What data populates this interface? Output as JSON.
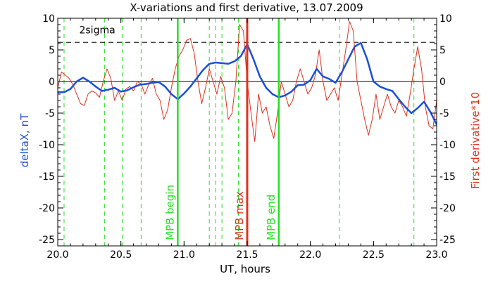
{
  "chart_data": {
    "type": "line",
    "title": "X-variations and first derivative, 13.07.2009",
    "xlabel": "UT, hours",
    "ylabel_left": "deltaX, nT",
    "ylabel_right": "First derivative*10",
    "xlim": [
      20.0,
      23.0
    ],
    "ylim": [
      -26,
      10
    ],
    "x_ticks": [
      "20.0",
      "20.5",
      "21.0",
      "21.5",
      "22.0",
      "22.5",
      "23.0"
    ],
    "y_ticks": [
      "10",
      "5",
      "0",
      "-5",
      "-10",
      "-15",
      "-20",
      "-25"
    ],
    "grid": false,
    "colors": {
      "deltaX": "#1a4fd6",
      "derivative": "#e0301e",
      "markers": "#22e022",
      "mpb_max": "#e0301e",
      "reference": "#000000"
    },
    "two_sigma": {
      "label": "2sigma",
      "value": 6.2
    },
    "zero_line": 0,
    "series": [
      {
        "name": "deltaX, nT",
        "axis": "left",
        "x": [
          20.0,
          20.05,
          20.1,
          20.15,
          20.2,
          20.25,
          20.3,
          20.35,
          20.4,
          20.45,
          20.5,
          20.55,
          20.6,
          20.65,
          20.7,
          20.75,
          20.8,
          20.85,
          20.9,
          20.95,
          21.0,
          21.05,
          21.1,
          21.15,
          21.2,
          21.25,
          21.3,
          21.35,
          21.4,
          21.45,
          21.5,
          21.55,
          21.6,
          21.65,
          21.7,
          21.75,
          21.8,
          21.85,
          21.9,
          21.95,
          22.0,
          22.05,
          22.1,
          22.15,
          22.2,
          22.25,
          22.3,
          22.35,
          22.4,
          22.45,
          22.5,
          22.55,
          22.6,
          22.65,
          22.7,
          22.75,
          22.8,
          22.85,
          22.9,
          22.95,
          23.0
        ],
        "y": [
          -1.7,
          -1.7,
          -1.2,
          0.0,
          0.6,
          0.0,
          -0.8,
          -1.5,
          -1.3,
          -1.0,
          -1.6,
          -1.4,
          -0.9,
          -0.5,
          -0.4,
          -0.2,
          -0.1,
          -0.8,
          -2.0,
          -2.8,
          -1.9,
          -0.8,
          0.5,
          1.8,
          2.8,
          3.0,
          2.9,
          2.8,
          3.2,
          4.0,
          5.9,
          3.5,
          0.8,
          -1.0,
          -2.0,
          -2.5,
          -2.2,
          -1.6,
          -0.6,
          -0.5,
          0.2,
          2.0,
          0.8,
          0.4,
          -0.2,
          1.5,
          3.5,
          5.5,
          6.1,
          3.5,
          0.0,
          -0.8,
          -1.2,
          -1.5,
          -2.8,
          -4.0,
          -5.0,
          -4.2,
          -3.2,
          -4.8,
          -6.8
        ]
      },
      {
        "name": "First derivative*10",
        "axis": "right",
        "x": [
          20.0,
          20.03,
          20.06,
          20.09,
          20.12,
          20.15,
          20.18,
          20.21,
          20.24,
          20.27,
          20.3,
          20.33,
          20.36,
          20.39,
          20.42,
          20.45,
          20.48,
          20.51,
          20.54,
          20.57,
          20.6,
          20.63,
          20.66,
          20.69,
          20.72,
          20.75,
          20.78,
          20.81,
          20.84,
          20.87,
          20.9,
          20.93,
          20.96,
          20.99,
          21.02,
          21.05,
          21.08,
          21.11,
          21.14,
          21.17,
          21.2,
          21.23,
          21.26,
          21.29,
          21.32,
          21.35,
          21.38,
          21.41,
          21.44,
          21.47,
          21.5,
          21.53,
          21.56,
          21.59,
          21.62,
          21.65,
          21.68,
          21.71,
          21.74,
          21.77,
          21.8,
          21.83,
          21.86,
          21.89,
          21.92,
          21.95,
          21.98,
          22.01,
          22.04,
          22.07,
          22.1,
          22.13,
          22.16,
          22.19,
          22.22,
          22.25,
          22.28,
          22.31,
          22.34,
          22.37,
          22.4,
          22.43,
          22.46,
          22.49,
          22.52,
          22.55,
          22.58,
          22.61,
          22.64,
          22.67,
          22.7,
          22.73,
          22.76,
          22.79,
          22.82,
          22.85,
          22.88,
          22.91,
          22.94,
          22.97,
          23.0
        ],
        "y": [
          -1.0,
          1.5,
          1.0,
          0.5,
          -0.5,
          -2.0,
          -3.5,
          -3.8,
          -2.0,
          -1.5,
          -1.8,
          -2.5,
          0.0,
          2.0,
          0.5,
          -3.0,
          -1.5,
          -3.0,
          -1.2,
          -0.8,
          -1.5,
          0.0,
          -0.4,
          -2.0,
          -0.5,
          0.5,
          -2.0,
          -3.0,
          -6.0,
          -4.5,
          -1.0,
          2.0,
          4.0,
          5.0,
          6.5,
          6.8,
          4.5,
          0.0,
          -3.5,
          -1.0,
          2.0,
          0.0,
          -2.0,
          0.8,
          -1.0,
          -6.0,
          -5.0,
          0.0,
          9.0,
          8.0,
          0.0,
          -5.0,
          -9.5,
          -2.0,
          -5.0,
          -4.0,
          -7.0,
          -9.0,
          -5.0,
          0.0,
          -2.0,
          -4.0,
          -3.0,
          0.0,
          2.0,
          0.0,
          -2.0,
          -1.0,
          1.0,
          5.0,
          0.0,
          -3.0,
          -2.0,
          -1.0,
          -3.0,
          1.0,
          5.0,
          9.5,
          8.0,
          0.0,
          -3.0,
          -6.0,
          -8.5,
          -6.0,
          -2.0,
          -6.0,
          -4.0,
          -2.0,
          -4.0,
          -5.0,
          -3.0,
          -4.0,
          -5.5,
          -2.0,
          2.0,
          5.5,
          2.0,
          -4.0,
          -7.0,
          -7.5,
          -3.0
        ]
      }
    ],
    "events": [
      {
        "label": "MPB begin",
        "x": 20.95
      },
      {
        "label": "MPB max",
        "x": 21.5
      },
      {
        "label": "MPB end",
        "x": 21.75
      }
    ],
    "dashed_markers": [
      20.05,
      20.37,
      20.51,
      20.66,
      20.95,
      21.2,
      21.25,
      21.3,
      21.43,
      22.23,
      22.82
    ]
  }
}
